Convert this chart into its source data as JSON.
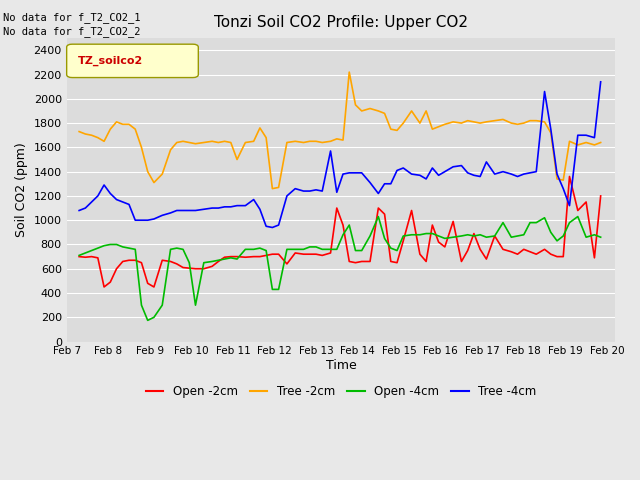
{
  "title": "Tonzi Soil CO2 Profile: Upper CO2",
  "ylabel": "Soil CO2 (ppm)",
  "xlabel": "Time",
  "top_left_text_line1": "No data for f_T2_CO2_1",
  "top_left_text_line2": "No data for f_T2_CO2_2",
  "legend_label": "TZ_soilco2",
  "ylim": [
    0,
    2500
  ],
  "yticks": [
    0,
    200,
    400,
    600,
    800,
    1000,
    1200,
    1400,
    1600,
    1800,
    2000,
    2200,
    2400
  ],
  "xlim": [
    7.0,
    20.2
  ],
  "xtick_positions": [
    7,
    8,
    9,
    10,
    11,
    12,
    13,
    14,
    15,
    16,
    17,
    18,
    19,
    20
  ],
  "xtick_labels": [
    "Feb 7",
    "Feb 8",
    "Feb 9",
    "Feb 10",
    "Feb 11",
    "Feb 12",
    "Feb 13",
    "Feb 14",
    "Feb 15",
    "Feb 16",
    "Feb 17",
    "Feb 18",
    "Feb 19",
    "Feb 20"
  ],
  "fig_bg": "#e8e8e8",
  "plot_bg": "#dcdcdc",
  "grid_color": "#ffffff",
  "series": {
    "open_2cm": {
      "color": "#ff0000",
      "label": "Open -2cm",
      "x": [
        7.3,
        7.45,
        7.6,
        7.75,
        7.9,
        8.05,
        8.2,
        8.35,
        8.5,
        8.65,
        8.8,
        8.95,
        9.1,
        9.3,
        9.5,
        9.65,
        9.8,
        9.95,
        10.1,
        10.3,
        10.5,
        10.65,
        10.8,
        10.95,
        11.1,
        11.3,
        11.5,
        11.65,
        11.8,
        11.95,
        12.1,
        12.3,
        12.5,
        12.7,
        12.85,
        13.0,
        13.15,
        13.35,
        13.5,
        13.65,
        13.8,
        13.95,
        14.1,
        14.3,
        14.5,
        14.65,
        14.8,
        14.95,
        15.1,
        15.3,
        15.5,
        15.65,
        15.8,
        15.95,
        16.1,
        16.3,
        16.5,
        16.65,
        16.8,
        16.95,
        17.1,
        17.3,
        17.5,
        17.7,
        17.85,
        18.0,
        18.15,
        18.3,
        18.5,
        18.65,
        18.8,
        18.95,
        19.1,
        19.3,
        19.5,
        19.7,
        19.85
      ],
      "y": [
        700,
        695,
        700,
        690,
        450,
        490,
        600,
        660,
        670,
        670,
        650,
        480,
        450,
        670,
        660,
        640,
        610,
        605,
        600,
        600,
        620,
        660,
        695,
        700,
        700,
        695,
        700,
        700,
        710,
        720,
        720,
        640,
        730,
        720,
        720,
        720,
        710,
        730,
        1100,
        960,
        660,
        650,
        660,
        660,
        1100,
        1050,
        660,
        650,
        830,
        1080,
        720,
        660,
        960,
        820,
        780,
        990,
        660,
        750,
        890,
        760,
        680,
        870,
        760,
        740,
        720,
        760,
        740,
        720,
        760,
        720,
        700,
        700,
        1360,
        1080,
        1150,
        690,
        1200
      ]
    },
    "tree_2cm": {
      "color": "#ffa500",
      "label": "Tree -2cm",
      "x": [
        7.3,
        7.45,
        7.6,
        7.75,
        7.9,
        8.05,
        8.2,
        8.35,
        8.5,
        8.65,
        8.8,
        8.95,
        9.1,
        9.3,
        9.5,
        9.65,
        9.8,
        9.95,
        10.1,
        10.3,
        10.5,
        10.65,
        10.8,
        10.95,
        11.1,
        11.3,
        11.5,
        11.65,
        11.8,
        11.95,
        12.1,
        12.3,
        12.5,
        12.7,
        12.85,
        13.0,
        13.15,
        13.35,
        13.5,
        13.65,
        13.8,
        13.95,
        14.1,
        14.3,
        14.5,
        14.65,
        14.8,
        14.95,
        15.1,
        15.3,
        15.5,
        15.65,
        15.8,
        15.95,
        16.1,
        16.3,
        16.5,
        16.65,
        16.8,
        16.95,
        17.1,
        17.3,
        17.5,
        17.7,
        17.85,
        18.0,
        18.15,
        18.3,
        18.5,
        18.65,
        18.8,
        18.95,
        19.1,
        19.3,
        19.5,
        19.7,
        19.85
      ],
      "y": [
        1730,
        1710,
        1700,
        1680,
        1650,
        1750,
        1810,
        1790,
        1790,
        1750,
        1600,
        1400,
        1310,
        1380,
        1580,
        1640,
        1650,
        1640,
        1630,
        1640,
        1650,
        1640,
        1650,
        1640,
        1500,
        1640,
        1650,
        1760,
        1680,
        1260,
        1270,
        1640,
        1650,
        1640,
        1650,
        1650,
        1640,
        1650,
        1670,
        1660,
        2220,
        1950,
        1900,
        1920,
        1900,
        1880,
        1750,
        1740,
        1800,
        1900,
        1800,
        1900,
        1750,
        1770,
        1790,
        1810,
        1800,
        1820,
        1810,
        1800,
        1810,
        1820,
        1830,
        1800,
        1790,
        1800,
        1820,
        1820,
        1810,
        1720,
        1340,
        1330,
        1650,
        1620,
        1640,
        1620,
        1640
      ]
    },
    "open_4cm": {
      "color": "#00bb00",
      "label": "Open -4cm",
      "x": [
        7.3,
        7.45,
        7.6,
        7.75,
        7.9,
        8.05,
        8.2,
        8.35,
        8.5,
        8.65,
        8.8,
        8.95,
        9.1,
        9.3,
        9.5,
        9.65,
        9.8,
        9.95,
        10.1,
        10.3,
        10.5,
        10.65,
        10.8,
        10.95,
        11.1,
        11.3,
        11.5,
        11.65,
        11.8,
        11.95,
        12.1,
        12.3,
        12.5,
        12.7,
        12.85,
        13.0,
        13.15,
        13.35,
        13.5,
        13.65,
        13.8,
        13.95,
        14.1,
        14.3,
        14.5,
        14.65,
        14.8,
        14.95,
        15.1,
        15.3,
        15.5,
        15.65,
        15.8,
        15.95,
        16.1,
        16.3,
        16.5,
        16.65,
        16.8,
        16.95,
        17.1,
        17.3,
        17.5,
        17.7,
        17.85,
        18.0,
        18.15,
        18.3,
        18.5,
        18.65,
        18.8,
        18.95,
        19.1,
        19.3,
        19.5,
        19.7,
        19.85
      ],
      "y": [
        710,
        730,
        750,
        770,
        790,
        800,
        800,
        780,
        770,
        760,
        300,
        175,
        200,
        300,
        760,
        770,
        760,
        650,
        300,
        650,
        660,
        670,
        680,
        690,
        680,
        760,
        760,
        770,
        750,
        430,
        430,
        760,
        760,
        760,
        780,
        780,
        760,
        760,
        760,
        880,
        960,
        750,
        750,
        870,
        1030,
        850,
        770,
        750,
        870,
        880,
        880,
        890,
        890,
        870,
        850,
        860,
        870,
        880,
        870,
        880,
        860,
        870,
        980,
        860,
        870,
        880,
        980,
        980,
        1020,
        900,
        830,
        870,
        980,
        1030,
        860,
        880,
        860
      ]
    },
    "tree_4cm": {
      "color": "#0000ff",
      "label": "Tree -4cm",
      "x": [
        7.3,
        7.45,
        7.6,
        7.75,
        7.9,
        8.05,
        8.2,
        8.35,
        8.5,
        8.65,
        8.8,
        8.95,
        9.1,
        9.3,
        9.5,
        9.65,
        9.8,
        9.95,
        10.1,
        10.3,
        10.5,
        10.65,
        10.8,
        10.95,
        11.1,
        11.3,
        11.5,
        11.65,
        11.8,
        11.95,
        12.1,
        12.3,
        12.5,
        12.7,
        12.85,
        13.0,
        13.15,
        13.35,
        13.5,
        13.65,
        13.8,
        13.95,
        14.1,
        14.3,
        14.5,
        14.65,
        14.8,
        14.95,
        15.1,
        15.3,
        15.5,
        15.65,
        15.8,
        15.95,
        16.1,
        16.3,
        16.5,
        16.65,
        16.8,
        16.95,
        17.1,
        17.3,
        17.5,
        17.7,
        17.85,
        18.0,
        18.15,
        18.3,
        18.5,
        18.65,
        18.8,
        18.95,
        19.1,
        19.3,
        19.5,
        19.7,
        19.85
      ],
      "y": [
        1080,
        1100,
        1150,
        1200,
        1290,
        1220,
        1170,
        1150,
        1130,
        1000,
        1000,
        1000,
        1010,
        1040,
        1060,
        1080,
        1080,
        1080,
        1080,
        1090,
        1100,
        1100,
        1110,
        1110,
        1120,
        1120,
        1170,
        1090,
        950,
        940,
        960,
        1200,
        1260,
        1240,
        1240,
        1250,
        1240,
        1570,
        1230,
        1380,
        1390,
        1390,
        1390,
        1310,
        1220,
        1300,
        1300,
        1410,
        1430,
        1380,
        1370,
        1340,
        1430,
        1370,
        1400,
        1440,
        1450,
        1390,
        1370,
        1360,
        1480,
        1380,
        1400,
        1380,
        1360,
        1380,
        1390,
        1400,
        2060,
        1750,
        1380,
        1260,
        1120,
        1700,
        1700,
        1680,
        2140
      ]
    }
  }
}
